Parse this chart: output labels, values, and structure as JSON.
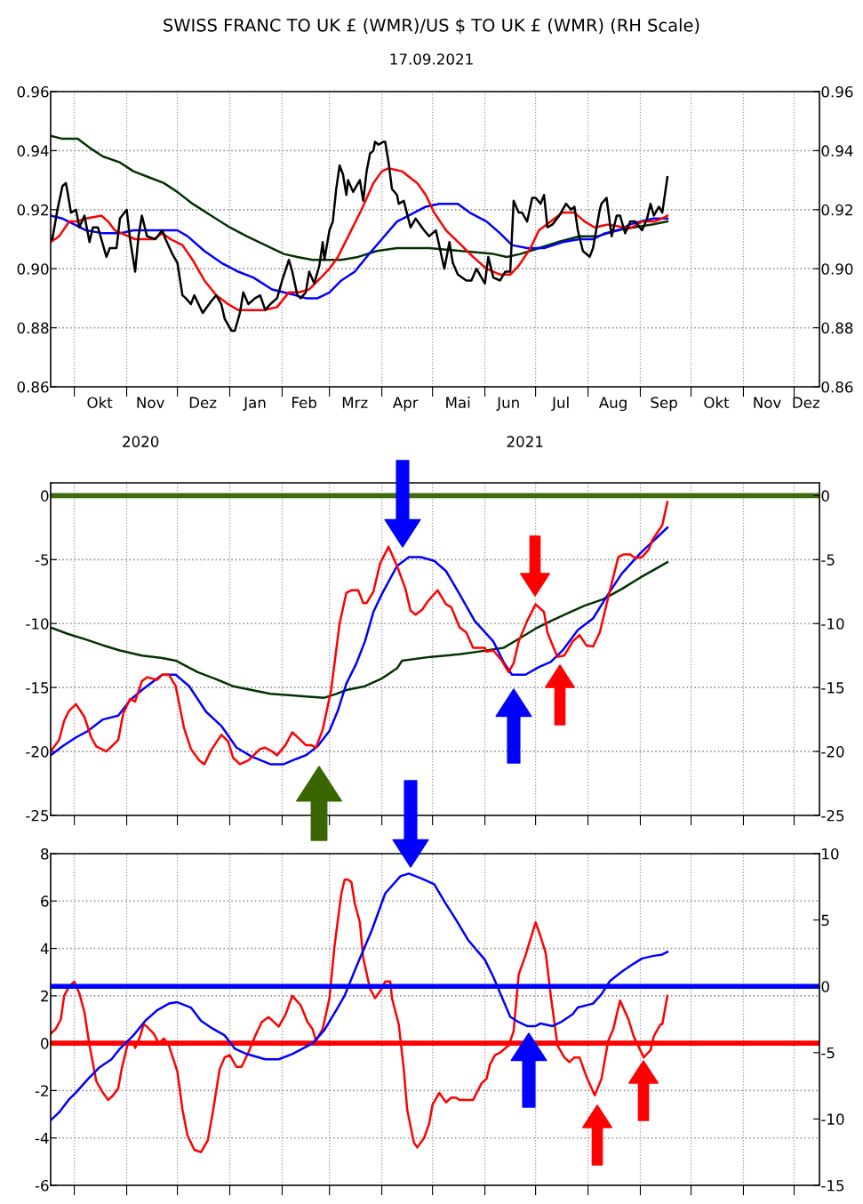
{
  "chart_data": [
    {
      "type": "line",
      "title": "SWISS FRANC TO UK £ (WMR)/US $ TO UK £ (WMR) (RH Scale)",
      "subtitle": "17.09.2021",
      "grid": true,
      "xlim": [
        "2020-09-17",
        "2021-12-16"
      ],
      "xticks": [
        {
          "value": "2020-10-01",
          "label": null
        },
        {
          "value": "2020-11-01",
          "label": null
        },
        {
          "value": "2020-12-01",
          "label": null
        },
        {
          "value": "2021-01-01",
          "label": null
        },
        {
          "value": "2021-02-01",
          "label": null
        },
        {
          "value": "2021-03-01",
          "label": null
        },
        {
          "value": "2021-04-01",
          "label": null
        },
        {
          "value": "2021-05-01",
          "label": null
        },
        {
          "value": "2021-06-01",
          "label": null
        },
        {
          "value": "2021-07-01",
          "label": null
        },
        {
          "value": "2021-08-01",
          "label": null
        },
        {
          "value": "2021-09-01",
          "label": null
        },
        {
          "value": "2021-10-01",
          "label": null
        },
        {
          "value": "2021-11-01",
          "label": null
        },
        {
          "value": "2021-12-01",
          "label": null
        },
        {
          "value": "2020-10-16",
          "label": "Okt"
        },
        {
          "value": "2020-11-15",
          "label": "Nov"
        },
        {
          "value": "2020-12-16",
          "label": "Dez"
        },
        {
          "value": "2021-01-16",
          "label": "Jan"
        },
        {
          "value": "2021-02-14",
          "label": "Feb"
        },
        {
          "value": "2021-03-16",
          "label": "Mrz"
        },
        {
          "value": "2021-04-15",
          "label": "Apr"
        },
        {
          "value": "2021-05-16",
          "label": "Mai"
        },
        {
          "value": "2021-06-15",
          "label": "Jun"
        },
        {
          "value": "2021-07-16",
          "label": "Jul"
        },
        {
          "value": "2021-08-16",
          "label": "Aug"
        },
        {
          "value": "2021-09-15",
          "label": "Sep"
        },
        {
          "value": "2021-10-16",
          "label": "Okt"
        },
        {
          "value": "2021-11-15",
          "label": "Nov"
        },
        {
          "value": "2021-12-08",
          "label": "Dez"
        }
      ],
      "annotations": [
        "2020",
        "2021"
      ],
      "ylim": [
        0.86,
        0.96
      ],
      "yticks": [
        {
          "value": 0.86,
          "label": "0.86"
        },
        {
          "value": 0.88,
          "label": "0.88"
        },
        {
          "value": 0.9,
          "label": "0.90"
        },
        {
          "value": 0.92,
          "label": "0.92"
        },
        {
          "value": 0.94,
          "label": "0.94"
        },
        {
          "value": 0.96,
          "label": "0.96"
        }
      ],
      "y2lim": [
        0.86,
        0.96
      ],
      "y2ticks": [
        {
          "value": 0.86,
          "label": "0.86"
        },
        {
          "value": 0.88,
          "label": "0.88"
        },
        {
          "value": 0.9,
          "label": "0.90"
        },
        {
          "value": 0.92,
          "label": "0.92"
        },
        {
          "value": 0.94,
          "label": "0.94"
        },
        {
          "value": 0.96,
          "label": "0.96"
        }
      ],
      "series": [
        {
          "color": "#003300",
          "x": [
            "2020-09-17",
            "2020-09-24",
            "2020-10-03",
            "2020-10-10",
            "2020-10-18",
            "2020-10-28",
            "2020-11-05",
            "2020-11-14",
            "2020-11-23",
            "2020-12-01",
            "2020-12-10",
            "2020-12-21",
            "2021-01-01",
            "2021-01-11",
            "2021-01-22",
            "2021-02-02",
            "2021-02-10",
            "2021-02-19",
            "2021-03-01",
            "2021-03-08",
            "2021-03-18",
            "2021-03-29",
            "2021-04-10",
            "2021-04-29",
            "2021-05-18",
            "2021-06-06",
            "2021-06-14",
            "2021-06-22",
            "2021-07-03",
            "2021-07-14",
            "2021-07-27",
            "2021-08-07",
            "2021-08-18",
            "2021-08-28",
            "2021-09-08",
            "2021-09-17"
          ],
          "values": [
            0.945,
            0.944,
            0.944,
            0.941,
            0.938,
            0.936,
            0.933,
            0.931,
            0.929,
            0.926,
            0.922,
            0.918,
            0.914,
            0.911,
            0.908,
            0.905,
            0.904,
            0.903,
            0.903,
            0.903,
            0.904,
            0.906,
            0.907,
            0.907,
            0.906,
            0.905,
            0.904,
            0.905,
            0.907,
            0.909,
            0.911,
            0.911,
            0.913,
            0.914,
            0.915,
            0.916
          ]
        },
        {
          "color": "#0000ff",
          "x": [
            "2020-09-17",
            "2020-09-24",
            "2020-10-01",
            "2020-10-08",
            "2020-10-18",
            "2020-10-28",
            "2020-11-05",
            "2020-11-22",
            "2020-12-01",
            "2020-12-07",
            "2020-12-17",
            "2020-12-27",
            "2021-01-06",
            "2021-01-15",
            "2021-01-26",
            "2021-02-02",
            "2021-02-09",
            "2021-02-15",
            "2021-02-22",
            "2021-03-01",
            "2021-03-08",
            "2021-03-16",
            "2021-03-23",
            "2021-04-01",
            "2021-04-10",
            "2021-04-17",
            "2021-04-27",
            "2021-05-05",
            "2021-05-16",
            "2021-05-23",
            "2021-06-02",
            "2021-06-10",
            "2021-06-17",
            "2021-06-26",
            "2021-07-06",
            "2021-07-17",
            "2021-07-27",
            "2021-08-04",
            "2021-08-11",
            "2021-08-19",
            "2021-08-26",
            "2021-09-01",
            "2021-09-09",
            "2021-09-17"
          ],
          "values": [
            0.918,
            0.917,
            0.915,
            0.913,
            0.912,
            0.912,
            0.913,
            0.913,
            0.913,
            0.911,
            0.906,
            0.902,
            0.899,
            0.897,
            0.893,
            0.892,
            0.891,
            0.89,
            0.89,
            0.892,
            0.896,
            0.899,
            0.904,
            0.91,
            0.916,
            0.918,
            0.921,
            0.922,
            0.922,
            0.919,
            0.916,
            0.912,
            0.908,
            0.907,
            0.907,
            0.909,
            0.91,
            0.91,
            0.912,
            0.913,
            0.915,
            0.916,
            0.917,
            0.917
          ]
        },
        {
          "color": "#ff0000",
          "x": [
            "2020-09-17",
            "2020-09-22",
            "2020-09-28",
            "2020-10-02",
            "2020-10-08",
            "2020-10-17",
            "2020-10-21",
            "2020-10-25",
            "2020-10-29",
            "2020-11-06",
            "2020-11-17",
            "2020-11-22",
            "2020-11-27",
            "2020-12-04",
            "2020-12-10",
            "2020-12-17",
            "2020-12-24",
            "2020-12-31",
            "2021-01-06",
            "2021-01-14",
            "2021-01-21",
            "2021-01-29",
            "2021-02-05",
            "2021-02-11",
            "2021-02-17",
            "2021-02-24",
            "2021-03-01",
            "2021-03-06",
            "2021-03-13",
            "2021-03-20",
            "2021-03-27",
            "2021-04-01",
            "2021-04-05",
            "2021-04-13",
            "2021-04-22",
            "2021-04-27",
            "2021-05-02",
            "2021-05-09",
            "2021-05-18",
            "2021-05-25",
            "2021-06-02",
            "2021-06-10",
            "2021-06-16",
            "2021-06-21",
            "2021-06-28",
            "2021-07-03",
            "2021-07-10",
            "2021-07-17",
            "2021-07-24",
            "2021-07-30",
            "2021-08-05",
            "2021-08-13",
            "2021-08-22",
            "2021-08-27",
            "2021-09-02",
            "2021-09-09",
            "2021-09-14",
            "2021-09-17"
          ],
          "values": [
            0.909,
            0.911,
            0.916,
            0.916,
            0.917,
            0.918,
            0.916,
            0.913,
            0.912,
            0.91,
            0.91,
            0.912,
            0.91,
            0.908,
            0.903,
            0.896,
            0.891,
            0.888,
            0.886,
            0.886,
            0.886,
            0.887,
            0.892,
            0.892,
            0.893,
            0.897,
            0.9,
            0.904,
            0.912,
            0.92,
            0.929,
            0.933,
            0.934,
            0.933,
            0.929,
            0.925,
            0.919,
            0.913,
            0.908,
            0.904,
            0.9,
            0.898,
            0.898,
            0.901,
            0.907,
            0.913,
            0.916,
            0.919,
            0.919,
            0.916,
            0.914,
            0.915,
            0.914,
            0.914,
            0.916,
            0.916,
            0.917,
            0.918
          ]
        },
        {
          "color": "#000000",
          "x": [
            "2020-09-17",
            "2020-09-18",
            "2020-09-21",
            "2020-09-24",
            "2020-09-26",
            "2020-09-27",
            "2020-09-29",
            "2020-10-02",
            "2020-10-04",
            "2020-10-07",
            "2020-10-10",
            "2020-10-12",
            "2020-10-15",
            "2020-10-20",
            "2020-10-22",
            "2020-10-26",
            "2020-10-28",
            "2020-11-01",
            "2020-11-03",
            "2020-11-06",
            "2020-11-08",
            "2020-11-10",
            "2020-11-13",
            "2020-11-18",
            "2020-11-22",
            "2020-11-24",
            "2020-11-28",
            "2020-12-01",
            "2020-12-04",
            "2020-12-06",
            "2020-12-09",
            "2020-12-11",
            "2020-12-16",
            "2020-12-21",
            "2020-12-24",
            "2020-12-27",
            "2020-12-29",
            "2021-01-02",
            "2021-01-04",
            "2021-01-07",
            "2021-01-09",
            "2021-01-12",
            "2021-01-16",
            "2021-01-19",
            "2021-01-22",
            "2021-01-25",
            "2021-01-29",
            "2021-02-01",
            "2021-02-05",
            "2021-02-07",
            "2021-02-10",
            "2021-02-12",
            "2021-02-15",
            "2021-02-17",
            "2021-02-20",
            "2021-02-23",
            "2021-02-25",
            "2021-02-26",
            "2021-03-01",
            "2021-03-03",
            "2021-03-05",
            "2021-03-07",
            "2021-03-09",
            "2021-03-11",
            "2021-03-12",
            "2021-03-15",
            "2021-03-17",
            "2021-03-19",
            "2021-03-21",
            "2021-03-23",
            "2021-03-25",
            "2021-03-27",
            "2021-03-28",
            "2021-03-30",
            "2021-04-02",
            "2021-04-03",
            "2021-04-05",
            "2021-04-07",
            "2021-04-10",
            "2021-04-11",
            "2021-04-14",
            "2021-04-18",
            "2021-04-21",
            "2021-04-26",
            "2021-04-29",
            "2021-05-03",
            "2021-05-08",
            "2021-05-11",
            "2021-05-13",
            "2021-05-16",
            "2021-05-21",
            "2021-05-24",
            "2021-05-27",
            "2021-06-01",
            "2021-06-03",
            "2021-06-06",
            "2021-06-10",
            "2021-06-13",
            "2021-06-16",
            "2021-06-18",
            "2021-06-21",
            "2021-06-23",
            "2021-06-26",
            "2021-06-29",
            "2021-07-01",
            "2021-07-04",
            "2021-07-06",
            "2021-07-08",
            "2021-07-11",
            "2021-07-15",
            "2021-07-19",
            "2021-07-22",
            "2021-07-24",
            "2021-07-26",
            "2021-07-29",
            "2021-08-02",
            "2021-08-04",
            "2021-08-08",
            "2021-08-09",
            "2021-08-12",
            "2021-08-15",
            "2021-08-18",
            "2021-08-20",
            "2021-08-23",
            "2021-08-26",
            "2021-08-29",
            "2021-09-02",
            "2021-09-05",
            "2021-09-07",
            "2021-09-09",
            "2021-09-12",
            "2021-09-14",
            "2021-09-16",
            "2021-09-17"
          ],
          "values": [
            0.91,
            0.91,
            0.92,
            0.928,
            0.929,
            0.926,
            0.919,
            0.92,
            0.914,
            0.918,
            0.909,
            0.914,
            0.914,
            0.904,
            0.907,
            0.907,
            0.917,
            0.92,
            0.91,
            0.899,
            0.911,
            0.918,
            0.911,
            0.91,
            0.913,
            0.91,
            0.905,
            0.902,
            0.891,
            0.89,
            0.888,
            0.891,
            0.885,
            0.889,
            0.891,
            0.888,
            0.883,
            0.879,
            0.879,
            0.885,
            0.892,
            0.888,
            0.89,
            0.891,
            0.886,
            0.888,
            0.89,
            0.896,
            0.903,
            0.899,
            0.891,
            0.89,
            0.892,
            0.899,
            0.895,
            0.901,
            0.909,
            0.903,
            0.913,
            0.916,
            0.927,
            0.935,
            0.932,
            0.925,
            0.93,
            0.926,
            0.928,
            0.93,
            0.923,
            0.933,
            0.939,
            0.94,
            0.943,
            0.942,
            0.943,
            0.943,
            0.936,
            0.927,
            0.925,
            0.922,
            0.923,
            0.914,
            0.917,
            0.913,
            0.911,
            0.913,
            0.9,
            0.909,
            0.902,
            0.898,
            0.896,
            0.896,
            0.9,
            0.895,
            0.904,
            0.897,
            0.896,
            0.899,
            0.899,
            0.923,
            0.919,
            0.919,
            0.916,
            0.924,
            0.924,
            0.922,
            0.925,
            0.914,
            0.915,
            0.918,
            0.922,
            0.92,
            0.921,
            0.913,
            0.906,
            0.904,
            0.907,
            0.92,
            0.922,
            0.924,
            0.911,
            0.918,
            0.918,
            0.912,
            0.916,
            0.916,
            0.913,
            0.917,
            0.922,
            0.918,
            0.921,
            0.919,
            0.927,
            0.931
          ]
        }
      ]
    },
    {
      "type": "line",
      "grid": true,
      "tick_labels": "y",
      "xlim": [
        "2020-09-17",
        "2021-12-16"
      ],
      "xticks": [
        {
          "value": "2020-10-01",
          "label": null
        },
        {
          "value": "2020-11-01",
          "label": null
        },
        {
          "value": "2020-12-01",
          "label": null
        },
        {
          "value": "2021-01-01",
          "label": null
        },
        {
          "value": "2021-02-01",
          "label": null
        },
        {
          "value": "2021-03-01",
          "label": null
        },
        {
          "value": "2021-04-01",
          "label": null
        },
        {
          "value": "2021-05-01",
          "label": null
        },
        {
          "value": "2021-06-01",
          "label": null
        },
        {
          "value": "2021-07-01",
          "label": null
        },
        {
          "value": "2021-08-01",
          "label": null
        },
        {
          "value": "2021-09-01",
          "label": null
        },
        {
          "value": "2021-10-01",
          "label": null
        },
        {
          "value": "2021-11-01",
          "label": null
        },
        {
          "value": "2021-12-01",
          "label": null
        }
      ],
      "ylim": [
        -25,
        1
      ],
      "yticks": [
        -25,
        -20,
        -15,
        -10,
        -5,
        0
      ],
      "y2lim": [
        -25,
        1
      ],
      "y2ticks": [
        -25,
        -20,
        -15,
        -10,
        -5,
        0
      ],
      "ref_lines": [
        {
          "axis": "y",
          "value": 0,
          "color": "#3f6a0e"
        }
      ],
      "series": [
        {
          "color": "#003300",
          "x": [
            "2020-09-17",
            "2020-09-27",
            "2020-10-09",
            "2020-10-18",
            "2020-10-28",
            "2020-11-10",
            "2020-11-22",
            "2020-11-30",
            "2020-12-13",
            "2020-12-23",
            "2021-01-03",
            "2021-01-14",
            "2021-01-25",
            "2021-02-05",
            "2021-02-15",
            "2021-02-26",
            "2021-03-05",
            "2021-03-11",
            "2021-03-22",
            "2021-04-01",
            "2021-04-10",
            "2021-04-13",
            "2021-04-30",
            "2021-05-17",
            "2021-05-28",
            "2021-06-12",
            "2021-06-21",
            "2021-07-01",
            "2021-07-10",
            "2021-07-20",
            "2021-07-30",
            "2021-08-10",
            "2021-08-21",
            "2021-09-01",
            "2021-09-09",
            "2021-09-17"
          ],
          "values": [
            -10.3,
            -10.8,
            -11.3,
            -11.7,
            -12.1,
            -12.5,
            -12.7,
            -12.9,
            -13.8,
            -14.3,
            -14.9,
            -15.2,
            -15.5,
            -15.6,
            -15.7,
            -15.8,
            -15.5,
            -15.2,
            -14.9,
            -14.3,
            -13.5,
            -12.9,
            -12.6,
            -12.4,
            -12.2,
            -11.9,
            -11.2,
            -10.4,
            -9.8,
            -9.2,
            -8.6,
            -8.1,
            -7.3,
            -6.4,
            -5.8,
            -5.2
          ]
        },
        {
          "color": "#0000ff",
          "x": [
            "2020-09-17",
            "2020-09-24",
            "2020-10-02",
            "2020-10-09",
            "2020-10-18",
            "2020-10-27",
            "2020-11-03",
            "2020-11-10",
            "2020-11-17",
            "2020-11-22",
            "2020-11-30",
            "2020-12-08",
            "2020-12-18",
            "2020-12-27",
            "2021-01-05",
            "2021-01-14",
            "2021-01-25",
            "2021-02-02",
            "2021-02-09",
            "2021-02-15",
            "2021-02-22",
            "2021-03-01",
            "2021-03-06",
            "2021-03-11",
            "2021-03-17",
            "2021-03-22",
            "2021-03-27",
            "2021-04-01",
            "2021-04-10",
            "2021-04-17",
            "2021-04-24",
            "2021-05-02",
            "2021-05-09",
            "2021-05-17",
            "2021-05-26",
            "2021-06-06",
            "2021-06-12",
            "2021-06-17",
            "2021-06-25",
            "2021-07-03",
            "2021-07-10",
            "2021-07-17",
            "2021-07-26",
            "2021-08-04",
            "2021-08-13",
            "2021-08-21",
            "2021-09-01",
            "2021-09-09",
            "2021-09-17"
          ],
          "values": [
            -20.3,
            -19.6,
            -18.9,
            -18.4,
            -17.5,
            -17.2,
            -16.0,
            -15.2,
            -14.5,
            -14.0,
            -14.0,
            -14.9,
            -16.9,
            -18.0,
            -19.7,
            -20.4,
            -21.0,
            -21.0,
            -20.6,
            -20.3,
            -19.6,
            -18.4,
            -16.8,
            -14.7,
            -13.1,
            -11.4,
            -9.1,
            -7.7,
            -5.5,
            -4.8,
            -4.8,
            -5.1,
            -5.9,
            -7.7,
            -9.8,
            -11.4,
            -13.0,
            -14.0,
            -14.0,
            -13.4,
            -13.0,
            -12.1,
            -10.5,
            -9.6,
            -7.7,
            -6.1,
            -4.5,
            -3.5,
            -2.5
          ]
        },
        {
          "color": "#ff0000",
          "x": [
            "2020-09-17",
            "2020-09-22",
            "2020-09-25",
            "2020-09-28",
            "2020-10-02",
            "2020-10-05",
            "2020-10-07",
            "2020-10-11",
            "2020-10-14",
            "2020-10-20",
            "2020-10-27",
            "2020-10-30",
            "2020-11-03",
            "2020-11-06",
            "2020-11-10",
            "2020-11-13",
            "2020-11-19",
            "2020-11-22",
            "2020-11-26",
            "2020-11-30",
            "2020-12-05",
            "2020-12-09",
            "2020-12-14",
            "2020-12-17",
            "2020-12-21",
            "2020-12-27",
            "2020-12-31",
            "2021-01-03",
            "2021-01-07",
            "2021-01-12",
            "2021-01-19",
            "2021-01-22",
            "2021-01-26",
            "2021-01-29",
            "2021-02-03",
            "2021-02-07",
            "2021-02-11",
            "2021-02-15",
            "2021-02-18",
            "2021-02-21",
            "2021-02-25",
            "2021-03-02",
            "2021-03-07",
            "2021-03-11",
            "2021-03-14",
            "2021-03-18",
            "2021-03-21",
            "2021-03-23",
            "2021-03-27",
            "2021-03-31",
            "2021-04-05",
            "2021-04-10",
            "2021-04-15",
            "2021-04-18",
            "2021-04-21",
            "2021-04-25",
            "2021-04-28",
            "2021-05-04",
            "2021-05-09",
            "2021-05-12",
            "2021-05-17",
            "2021-05-21",
            "2021-05-25",
            "2021-06-01",
            "2021-06-02",
            "2021-06-06",
            "2021-06-11",
            "2021-06-15",
            "2021-06-18",
            "2021-06-21",
            "2021-06-26",
            "2021-07-01",
            "2021-07-06",
            "2021-07-08",
            "2021-07-12",
            "2021-07-14",
            "2021-07-18",
            "2021-07-23",
            "2021-07-27",
            "2021-07-31",
            "2021-08-04",
            "2021-08-08",
            "2021-08-14",
            "2021-08-19",
            "2021-08-22",
            "2021-08-26",
            "2021-08-29",
            "2021-09-02",
            "2021-09-06",
            "2021-09-08",
            "2021-09-12",
            "2021-09-14",
            "2021-09-17"
          ],
          "values": [
            -20.0,
            -19.1,
            -17.6,
            -16.8,
            -16.3,
            -16.9,
            -17.3,
            -18.9,
            -19.6,
            -20.0,
            -19.1,
            -17.0,
            -15.9,
            -16.1,
            -14.5,
            -14.2,
            -14.4,
            -14.0,
            -14.0,
            -14.9,
            -18.2,
            -19.8,
            -20.7,
            -21.0,
            -19.9,
            -18.7,
            -19.2,
            -20.5,
            -21.0,
            -20.7,
            -19.8,
            -19.7,
            -20.0,
            -20.3,
            -19.5,
            -18.5,
            -19.0,
            -19.5,
            -19.5,
            -19.7,
            -18.3,
            -15.2,
            -10.0,
            -7.6,
            -7.4,
            -7.4,
            -8.4,
            -8.4,
            -7.5,
            -5.3,
            -4.0,
            -5.5,
            -7.3,
            -9.0,
            -9.3,
            -8.9,
            -8.3,
            -7.4,
            -8.5,
            -8.7,
            -10.3,
            -10.7,
            -11.9,
            -11.9,
            -12.2,
            -12.1,
            -12.9,
            -13.8,
            -13.1,
            -11.4,
            -9.8,
            -8.5,
            -9.1,
            -10.7,
            -12.0,
            -12.6,
            -12.5,
            -11.4,
            -10.9,
            -11.7,
            -11.8,
            -10.7,
            -7.4,
            -4.8,
            -4.6,
            -4.6,
            -4.9,
            -4.8,
            -4.2,
            -3.5,
            -2.7,
            -2.3,
            -0.5
          ]
        }
      ]
    },
    {
      "type": "line",
      "grid": true,
      "tick_labels": "y",
      "xlim": [
        "2020-09-17",
        "2021-12-16"
      ],
      "xticks": [
        {
          "value": "2020-10-01",
          "label": null
        },
        {
          "value": "2020-11-01",
          "label": null
        },
        {
          "value": "2020-12-01",
          "label": null
        },
        {
          "value": "2021-01-01",
          "label": null
        },
        {
          "value": "2021-02-01",
          "label": null
        },
        {
          "value": "2021-03-01",
          "label": null
        },
        {
          "value": "2021-04-01",
          "label": null
        },
        {
          "value": "2021-05-01",
          "label": null
        },
        {
          "value": "2021-06-01",
          "label": null
        },
        {
          "value": "2021-07-01",
          "label": null
        },
        {
          "value": "2021-08-01",
          "label": null
        },
        {
          "value": "2021-09-01",
          "label": null
        },
        {
          "value": "2021-10-01",
          "label": null
        },
        {
          "value": "2021-11-01",
          "label": null
        },
        {
          "value": "2021-12-01",
          "label": null
        }
      ],
      "ylim": [
        -6,
        8
      ],
      "yticks": [
        -6,
        -4,
        -2,
        0,
        2,
        4,
        6,
        8
      ],
      "y2lim": [
        -15,
        10
      ],
      "y2ticks": [
        -15,
        -10,
        -5,
        0,
        5,
        10
      ],
      "ref_lines": [
        {
          "axis": "y",
          "value": 0,
          "color": "#ff0000"
        },
        {
          "axis": "y2",
          "value": 0,
          "color": "#0000ff"
        }
      ],
      "series": [
        {
          "color": "#ff0000",
          "x": [
            "2020-09-17",
            "2020-09-20",
            "2020-09-23",
            "2020-09-25",
            "2020-09-28",
            "2020-10-01",
            "2020-10-04",
            "2020-10-07",
            "2020-10-10",
            "2020-10-14",
            "2020-10-18",
            "2020-10-21",
            "2020-10-24",
            "2020-10-27",
            "2020-10-29",
            "2020-11-02",
            "2020-11-05",
            "2020-11-06",
            "2020-11-09",
            "2020-11-11",
            "2020-11-13",
            "2020-11-17",
            "2020-11-20",
            "2020-11-23",
            "2020-11-26",
            "2020-12-01",
            "2020-12-04",
            "2020-12-07",
            "2020-12-11",
            "2020-12-15",
            "2020-12-19",
            "2020-12-22",
            "2020-12-26",
            "2020-12-29",
            "2021-01-01",
            "2021-01-05",
            "2021-01-08",
            "2021-01-12",
            "2021-01-16",
            "2021-01-20",
            "2021-01-24",
            "2021-01-27",
            "2021-01-30",
            "2021-02-03",
            "2021-02-05",
            "2021-02-07",
            "2021-02-12",
            "2021-02-16",
            "2021-02-19",
            "2021-02-21",
            "2021-02-25",
            "2021-03-01",
            "2021-03-04",
            "2021-03-08",
            "2021-03-10",
            "2021-03-12",
            "2021-03-14",
            "2021-03-16",
            "2021-03-19",
            "2021-03-21",
            "2021-03-25",
            "2021-03-28",
            "2021-04-01",
            "2021-04-03",
            "2021-04-06",
            "2021-04-07",
            "2021-04-11",
            "2021-04-14",
            "2021-04-16",
            "2021-04-20",
            "2021-04-22",
            "2021-04-26",
            "2021-04-29",
            "2021-05-01",
            "2021-05-05",
            "2021-05-09",
            "2021-05-12",
            "2021-05-15",
            "2021-05-17",
            "2021-05-25",
            "2021-05-30",
            "2021-06-02",
            "2021-06-04",
            "2021-06-07",
            "2021-06-10",
            "2021-06-15",
            "2021-06-18",
            "2021-06-21",
            "2021-06-25",
            "2021-06-28",
            "2021-07-01",
            "2021-07-04",
            "2021-07-07",
            "2021-07-10",
            "2021-07-14",
            "2021-07-18",
            "2021-07-21",
            "2021-07-24",
            "2021-07-27",
            "2021-07-31",
            "2021-08-05",
            "2021-08-09",
            "2021-08-13",
            "2021-08-16",
            "2021-08-20",
            "2021-08-25",
            "2021-08-28",
            "2021-09-01",
            "2021-09-03",
            "2021-09-07",
            "2021-09-09",
            "2021-09-13",
            "2021-09-14",
            "2021-09-17"
          ],
          "values": [
            0.4,
            0.6,
            1.0,
            2.0,
            2.4,
            2.6,
            2.1,
            1.3,
            -0.1,
            -1.6,
            -2.1,
            -2.4,
            -2.2,
            -1.9,
            -1.1,
            0.1,
            0.0,
            -0.2,
            0.3,
            0.8,
            0.7,
            0.4,
            0.0,
            0.2,
            -0.1,
            -1.2,
            -2.8,
            -3.9,
            -4.5,
            -4.6,
            -4.1,
            -2.9,
            -1.1,
            -0.6,
            -0.5,
            -1.0,
            -1.0,
            -0.4,
            0.3,
            0.9,
            1.1,
            0.9,
            0.7,
            1.2,
            1.6,
            2.0,
            1.6,
            0.9,
            0.6,
            0.1,
            0.6,
            1.9,
            4.1,
            6.3,
            6.9,
            6.9,
            6.8,
            5.9,
            5.1,
            3.6,
            2.3,
            1.9,
            2.3,
            2.6,
            2.6,
            1.9,
            0.8,
            -1.1,
            -2.8,
            -4.2,
            -4.4,
            -4.0,
            -3.4,
            -2.6,
            -2.1,
            -2.5,
            -2.3,
            -2.3,
            -2.4,
            -2.4,
            -1.7,
            -1.5,
            -0.9,
            -0.5,
            -0.4,
            -0.1,
            0.5,
            2.9,
            3.7,
            4.4,
            5.1,
            4.5,
            3.8,
            2.0,
            -0.1,
            -0.6,
            -0.8,
            -0.6,
            -0.6,
            -1.4,
            -2.2,
            -1.5,
            0.1,
            0.6,
            1.8,
            1.0,
            0.3,
            -0.3,
            -0.6,
            -0.3,
            0.3,
            0.8,
            0.8,
            2.0
          ]
        },
        {
          "color": "#0000ff",
          "axis": "y2",
          "x": [
            "2020-09-17",
            "2020-09-22",
            "2020-09-28",
            "2020-10-02",
            "2020-10-09",
            "2020-10-16",
            "2020-10-23",
            "2020-10-28",
            "2020-11-05",
            "2020-11-12",
            "2020-11-19",
            "2020-11-26",
            "2020-12-01",
            "2020-12-09",
            "2020-12-15",
            "2020-12-22",
            "2020-12-29",
            "2021-01-04",
            "2021-01-11",
            "2021-01-22",
            "2021-01-30",
            "2021-02-07",
            "2021-02-13",
            "2021-02-19",
            "2021-02-26",
            "2021-03-05",
            "2021-03-10",
            "2021-03-17",
            "2021-03-26",
            "2021-04-03",
            "2021-04-12",
            "2021-04-17",
            "2021-04-25",
            "2021-05-02",
            "2021-05-08",
            "2021-05-15",
            "2021-05-22",
            "2021-06-01",
            "2021-06-06",
            "2021-06-11",
            "2021-06-16",
            "2021-06-21",
            "2021-06-26",
            "2021-07-01",
            "2021-07-04",
            "2021-07-11",
            "2021-07-16",
            "2021-07-23",
            "2021-07-26",
            "2021-08-04",
            "2021-08-09",
            "2021-08-14",
            "2021-08-21",
            "2021-08-28",
            "2021-09-02",
            "2021-09-09",
            "2021-09-14",
            "2021-09-17"
          ],
          "values": [
            -10.1,
            -9.5,
            -8.5,
            -8.0,
            -7.0,
            -6.1,
            -5.5,
            -4.7,
            -3.7,
            -2.6,
            -1.8,
            -1.3,
            -1.2,
            -1.6,
            -2.6,
            -3.2,
            -3.7,
            -4.7,
            -5.1,
            -5.5,
            -5.5,
            -5.1,
            -4.7,
            -4.3,
            -3.3,
            -1.8,
            -0.7,
            1.5,
            4.2,
            7.0,
            8.3,
            8.5,
            8.1,
            7.7,
            6.4,
            5.0,
            3.5,
            2.0,
            0.7,
            -0.8,
            -2.3,
            -2.7,
            -3.0,
            -3.0,
            -2.8,
            -3.0,
            -2.7,
            -2.1,
            -1.6,
            -1.3,
            -0.6,
            0.4,
            1.1,
            1.7,
            2.1,
            2.3,
            2.4,
            2.6
          ]
        }
      ]
    }
  ]
}
